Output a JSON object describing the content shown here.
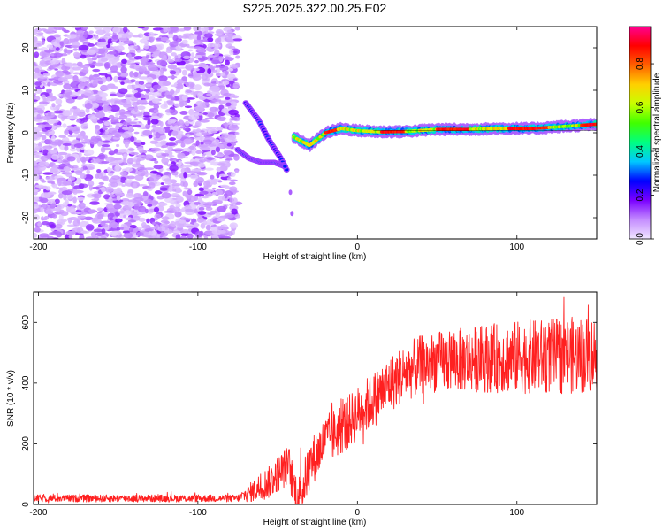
{
  "chart_data": [
    {
      "type": "heatmap",
      "title": "S225.2025.322.00.25.E02",
      "xlabel": "Height of straight line (km)",
      "ylabel": "Frequency (Hz)",
      "xlim": [
        -203,
        150
      ],
      "ylim": [
        -25,
        25
      ],
      "x_ticks": [
        -200,
        -100,
        0,
        100
      ],
      "y_ticks": [
        -20,
        -10,
        0,
        10,
        20
      ],
      "colorbar": {
        "label": "Normalized spectral amplitude",
        "range": [
          0.0,
          0.97
        ],
        "ticks": [
          0.0,
          0.2,
          0.4,
          0.6,
          0.8
        ],
        "colors": [
          "#f0e6ff",
          "#c48cff",
          "#7a00ff",
          "#0000ff",
          "#00c8ff",
          "#00ff80",
          "#40ff00",
          "#c8ff00",
          "#ffd000",
          "#ff6000",
          "#ff0000",
          "#ff0090"
        ]
      },
      "features": {
        "noise_region_km": [
          -203,
          -75
        ],
        "noise_band_hz": [
          -25,
          25
        ],
        "branch_upper": [
          [
            -70,
            7
          ],
          [
            -62,
            3
          ],
          [
            -55,
            -2
          ],
          [
            -48,
            -6
          ],
          [
            -44,
            -9
          ]
        ],
        "branch_lower": [
          [
            -75,
            -4
          ],
          [
            -68,
            -6
          ],
          [
            -60,
            -7
          ],
          [
            -52,
            -7
          ],
          [
            -45,
            -8
          ]
        ],
        "tail_points": [
          [
            -42,
            -14
          ],
          [
            -41,
            -19
          ]
        ],
        "main_line": [
          [
            -40,
            -1
          ],
          [
            -30,
            -3
          ],
          [
            -20,
            0
          ],
          [
            -10,
            1
          ],
          [
            0,
            0.5
          ],
          [
            15,
            0.2
          ],
          [
            30,
            0.3
          ],
          [
            50,
            0.8
          ],
          [
            70,
            0.8
          ],
          [
            90,
            1
          ],
          [
            110,
            1
          ],
          [
            130,
            1.5
          ],
          [
            150,
            2
          ]
        ],
        "hot_segments": [
          [
            -20,
            -12
          ],
          [
            15,
            30
          ],
          [
            50,
            70
          ],
          [
            95,
            120
          ],
          [
            140,
            150
          ]
        ]
      }
    },
    {
      "type": "line",
      "xlabel": "Height of straight line (km)",
      "ylabel": "SNR (10 * v/v)",
      "xlim": [
        -203,
        150
      ],
      "ylim": [
        0,
        700
      ],
      "x_ticks": [
        -200,
        -100,
        0,
        100
      ],
      "y_ticks": [
        0,
        200,
        400,
        600
      ],
      "series": [
        {
          "name": "SNR",
          "color": "#ff2020",
          "baseline": [
            [
              -203,
              20
            ],
            [
              -75,
              20
            ],
            [
              -65,
              45
            ],
            [
              -55,
              75
            ],
            [
              -48,
              110
            ],
            [
              -43,
              130
            ],
            [
              -40,
              60
            ],
            [
              -37,
              20
            ],
            [
              -34,
              60
            ],
            [
              -30,
              130
            ],
            [
              -20,
              210
            ],
            [
              -10,
              250
            ],
            [
              0,
              300
            ],
            [
              10,
              345
            ],
            [
              20,
              395
            ],
            [
              30,
              435
            ],
            [
              40,
              460
            ],
            [
              50,
              470
            ],
            [
              75,
              480
            ],
            [
              100,
              485
            ],
            [
              125,
              490
            ],
            [
              150,
              495
            ]
          ],
          "noise_amplitude": [
            [
              -203,
              12
            ],
            [
              -75,
              12
            ],
            [
              -60,
              50
            ],
            [
              -40,
              70
            ],
            [
              -30,
              80
            ],
            [
              0,
              90
            ],
            [
              50,
              100
            ],
            [
              100,
              120
            ],
            [
              150,
              130
            ]
          ]
        }
      ]
    }
  ]
}
